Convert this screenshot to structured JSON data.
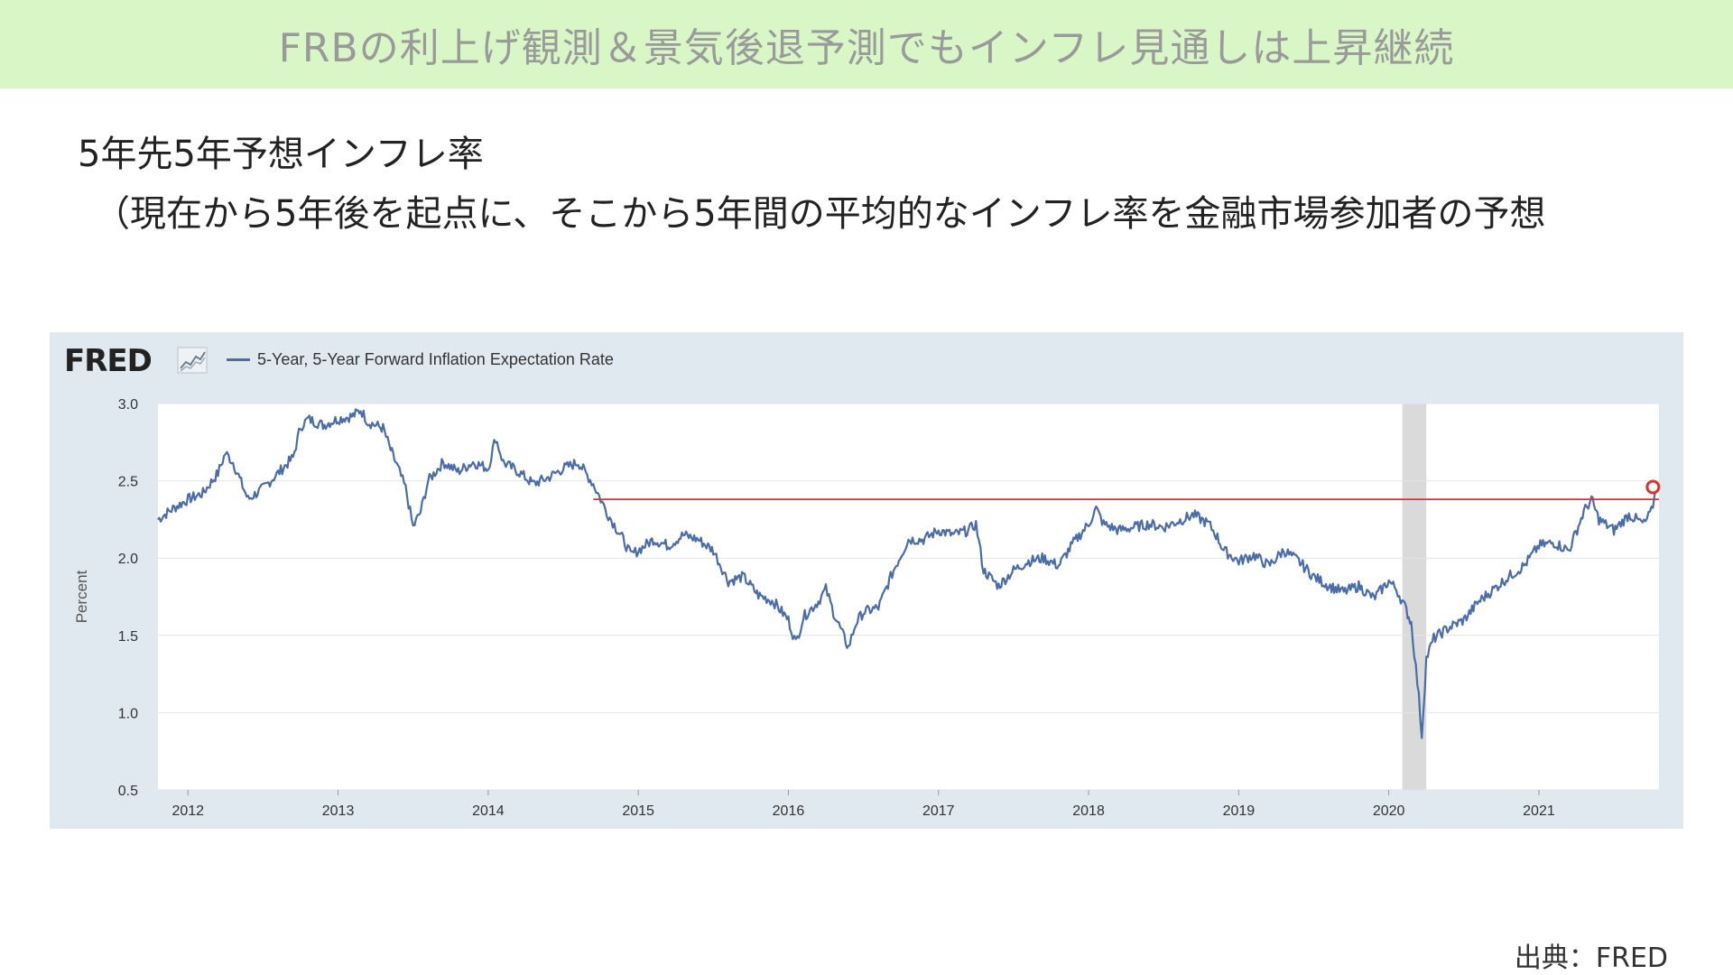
{
  "banner": {
    "title": "FRBの利上げ観測＆景気後退予測でもインフレ見通しは上昇継続"
  },
  "heading": "5年先5年予想インフレ率",
  "subheading": "（現在から5年後を起点に、そこから5年間の平均的なインフレ率を金融市場参加者の予想",
  "source": "出典：FRED",
  "colors": {
    "banner_bg": "#d9f7c6",
    "panel_bg": "#e1e9f0",
    "series": "#4a6da7",
    "reference_line": "#d9342b",
    "recession": "#dadada"
  },
  "chart_data": {
    "type": "line",
    "logo": "FRED",
    "title": "",
    "xlabel": "",
    "ylabel": "Percent",
    "ylim": [
      0.5,
      3.0
    ],
    "xlim": [
      2011.8,
      2021.8
    ],
    "y_ticks": [
      0.5,
      1.0,
      1.5,
      2.0,
      2.5,
      3.0
    ],
    "y_tick_labels": [
      "0.5",
      "1.0",
      "1.5",
      "2.0",
      "2.5",
      "3.0"
    ],
    "x_ticks": [
      2012,
      2013,
      2014,
      2015,
      2016,
      2017,
      2018,
      2019,
      2020,
      2021
    ],
    "x_tick_labels": [
      "2012",
      "2013",
      "2014",
      "2015",
      "2016",
      "2017",
      "2018",
      "2019",
      "2020",
      "2021"
    ],
    "grid": true,
    "legend_position": "top-left",
    "recession_band": [
      2020.09,
      2020.25
    ],
    "reference_line": {
      "y": 2.38,
      "x_start": 2014.7,
      "x_end": 2021.8
    },
    "marker": {
      "x": 2021.76,
      "y": 2.46
    },
    "series": [
      {
        "name": "5-Year, 5-Year Forward Inflation Expectation Rate",
        "x": [
          2011.8,
          2011.9,
          2012.0,
          2012.1,
          2012.2,
          2012.25,
          2012.3,
          2012.4,
          2012.5,
          2012.6,
          2012.7,
          2012.75,
          2012.8,
          2012.9,
          2013.0,
          2013.1,
          2013.15,
          2013.2,
          2013.3,
          2013.35,
          2013.4,
          2013.45,
          2013.5,
          2013.55,
          2013.6,
          2013.7,
          2013.8,
          2013.9,
          2014.0,
          2014.05,
          2014.1,
          2014.2,
          2014.3,
          2014.4,
          2014.5,
          2014.6,
          2014.65,
          2014.7,
          2014.75,
          2014.8,
          2014.85,
          2014.9,
          2014.95,
          2015.0,
          2015.1,
          2015.2,
          2015.3,
          2015.4,
          2015.5,
          2015.55,
          2015.6,
          2015.7,
          2015.8,
          2015.9,
          2016.0,
          2016.05,
          2016.1,
          2016.2,
          2016.25,
          2016.3,
          2016.4,
          2016.45,
          2016.5,
          2016.6,
          2016.7,
          2016.8,
          2016.9,
          2017.0,
          2017.1,
          2017.2,
          2017.25,
          2017.3,
          2017.4,
          2017.5,
          2017.6,
          2017.7,
          2017.8,
          2017.9,
          2018.0,
          2018.05,
          2018.1,
          2018.2,
          2018.3,
          2018.4,
          2018.5,
          2018.6,
          2018.7,
          2018.8,
          2018.85,
          2018.9,
          2019.0,
          2019.1,
          2019.2,
          2019.3,
          2019.4,
          2019.5,
          2019.6,
          2019.7,
          2019.8,
          2019.9,
          2020.0,
          2020.05,
          2020.1,
          2020.15,
          2020.2,
          2020.22,
          2020.25,
          2020.3,
          2020.4,
          2020.5,
          2020.6,
          2020.7,
          2020.8,
          2020.9,
          2021.0,
          2021.1,
          2021.2,
          2021.3,
          2021.35,
          2021.4,
          2021.5,
          2021.6,
          2021.7,
          2021.75,
          2021.78
        ],
        "values": [
          2.25,
          2.32,
          2.38,
          2.42,
          2.55,
          2.68,
          2.62,
          2.38,
          2.45,
          2.55,
          2.65,
          2.85,
          2.9,
          2.86,
          2.9,
          2.92,
          2.96,
          2.88,
          2.84,
          2.7,
          2.58,
          2.45,
          2.2,
          2.3,
          2.5,
          2.62,
          2.56,
          2.62,
          2.58,
          2.78,
          2.62,
          2.56,
          2.48,
          2.52,
          2.58,
          2.62,
          2.55,
          2.48,
          2.38,
          2.28,
          2.2,
          2.12,
          2.02,
          2.05,
          2.12,
          2.08,
          2.15,
          2.12,
          2.05,
          1.95,
          1.85,
          1.88,
          1.76,
          1.72,
          1.6,
          1.45,
          1.62,
          1.72,
          1.8,
          1.65,
          1.42,
          1.58,
          1.65,
          1.68,
          1.92,
          2.12,
          2.12,
          2.18,
          2.15,
          2.18,
          2.22,
          1.92,
          1.82,
          1.92,
          1.98,
          2.0,
          1.95,
          2.1,
          2.22,
          2.32,
          2.22,
          2.18,
          2.2,
          2.22,
          2.2,
          2.24,
          2.28,
          2.22,
          2.15,
          2.05,
          1.98,
          2.02,
          1.95,
          2.05,
          1.98,
          1.88,
          1.82,
          1.78,
          1.82,
          1.74,
          1.85,
          1.8,
          1.7,
          1.58,
          1.1,
          0.85,
          1.35,
          1.48,
          1.55,
          1.6,
          1.72,
          1.8,
          1.88,
          1.95,
          2.08,
          2.1,
          2.05,
          2.3,
          2.38,
          2.25,
          2.18,
          2.28,
          2.22,
          2.3,
          2.44
        ]
      }
    ]
  }
}
